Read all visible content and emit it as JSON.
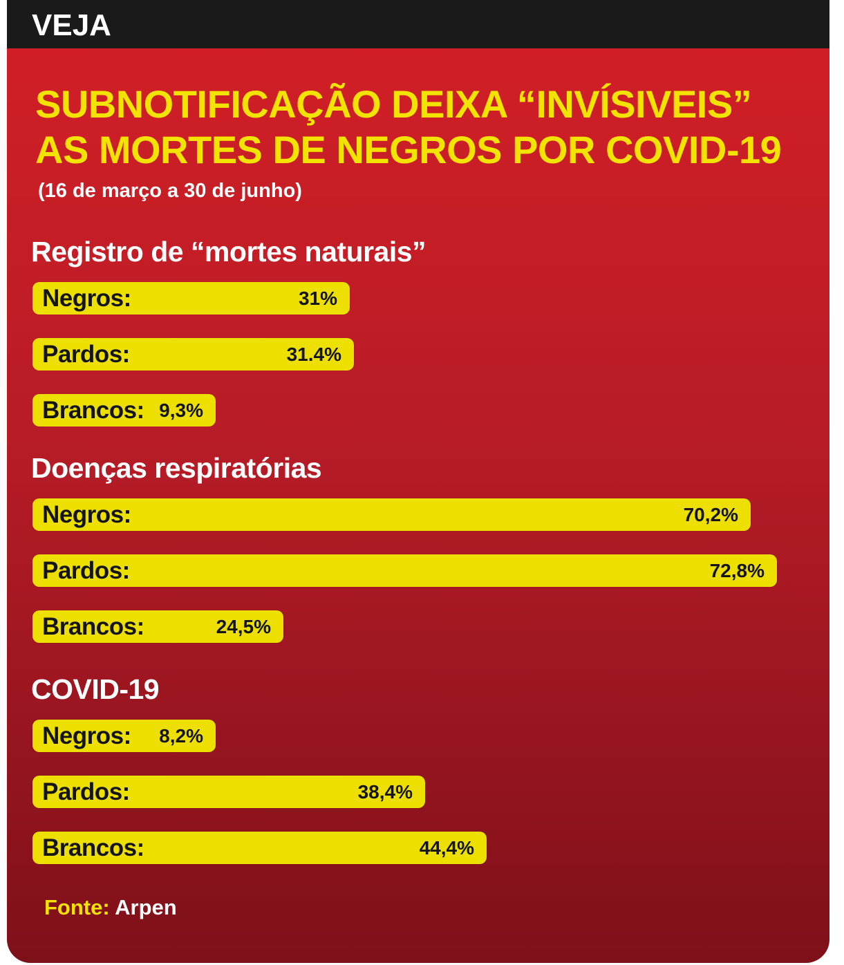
{
  "brand": "VEJA",
  "title_lines": [
    "SUBNOTIFICAÇÃO DEIXA “INVÍSIVEIS”",
    "AS MORTES DE NEGROS POR COVID-19"
  ],
  "subtitle": "(16 de março a 30 de junho)",
  "source": {
    "key": "Fonte:",
    "value": "Arpen"
  },
  "colors": {
    "bar": "#ede000",
    "title": "#f2e300",
    "background_top": "#d41f26",
    "background_bottom": "#7e1019",
    "topbar": "#1a1a1a"
  },
  "chart_data": {
    "type": "bar",
    "orientation": "horizontal",
    "title": "SUBNOTIFICAÇÃO DEIXA “INVÍSIVEIS” AS MORTES DE NEGROS POR COVID-19",
    "unit": "%",
    "xlim": [
      0,
      75
    ],
    "groups": [
      {
        "name": "Registro de “mortes naturais”",
        "bars": [
          {
            "category": "Negros:",
            "value": 31,
            "label": "31%"
          },
          {
            "category": "Pardos:",
            "value": 31.4,
            "label": "31.4%"
          },
          {
            "category": "Brancos:",
            "value": 9.3,
            "label": "9,3%"
          }
        ]
      },
      {
        "name": "Doenças respiratórias",
        "bars": [
          {
            "category": "Negros:",
            "value": 70.2,
            "label": "70,2%"
          },
          {
            "category": "Pardos:",
            "value": 72.8,
            "label": "72,8%"
          },
          {
            "category": "Brancos:",
            "value": 24.5,
            "label": "24,5%"
          }
        ]
      },
      {
        "name": "COVID-19",
        "bars": [
          {
            "category": "Negros:",
            "value": 8.2,
            "label": "8,2%"
          },
          {
            "category": "Pardos:",
            "value": 38.4,
            "label": "38,4%"
          },
          {
            "category": "Brancos:",
            "value": 44.4,
            "label": "44,4%"
          }
        ]
      }
    ]
  }
}
